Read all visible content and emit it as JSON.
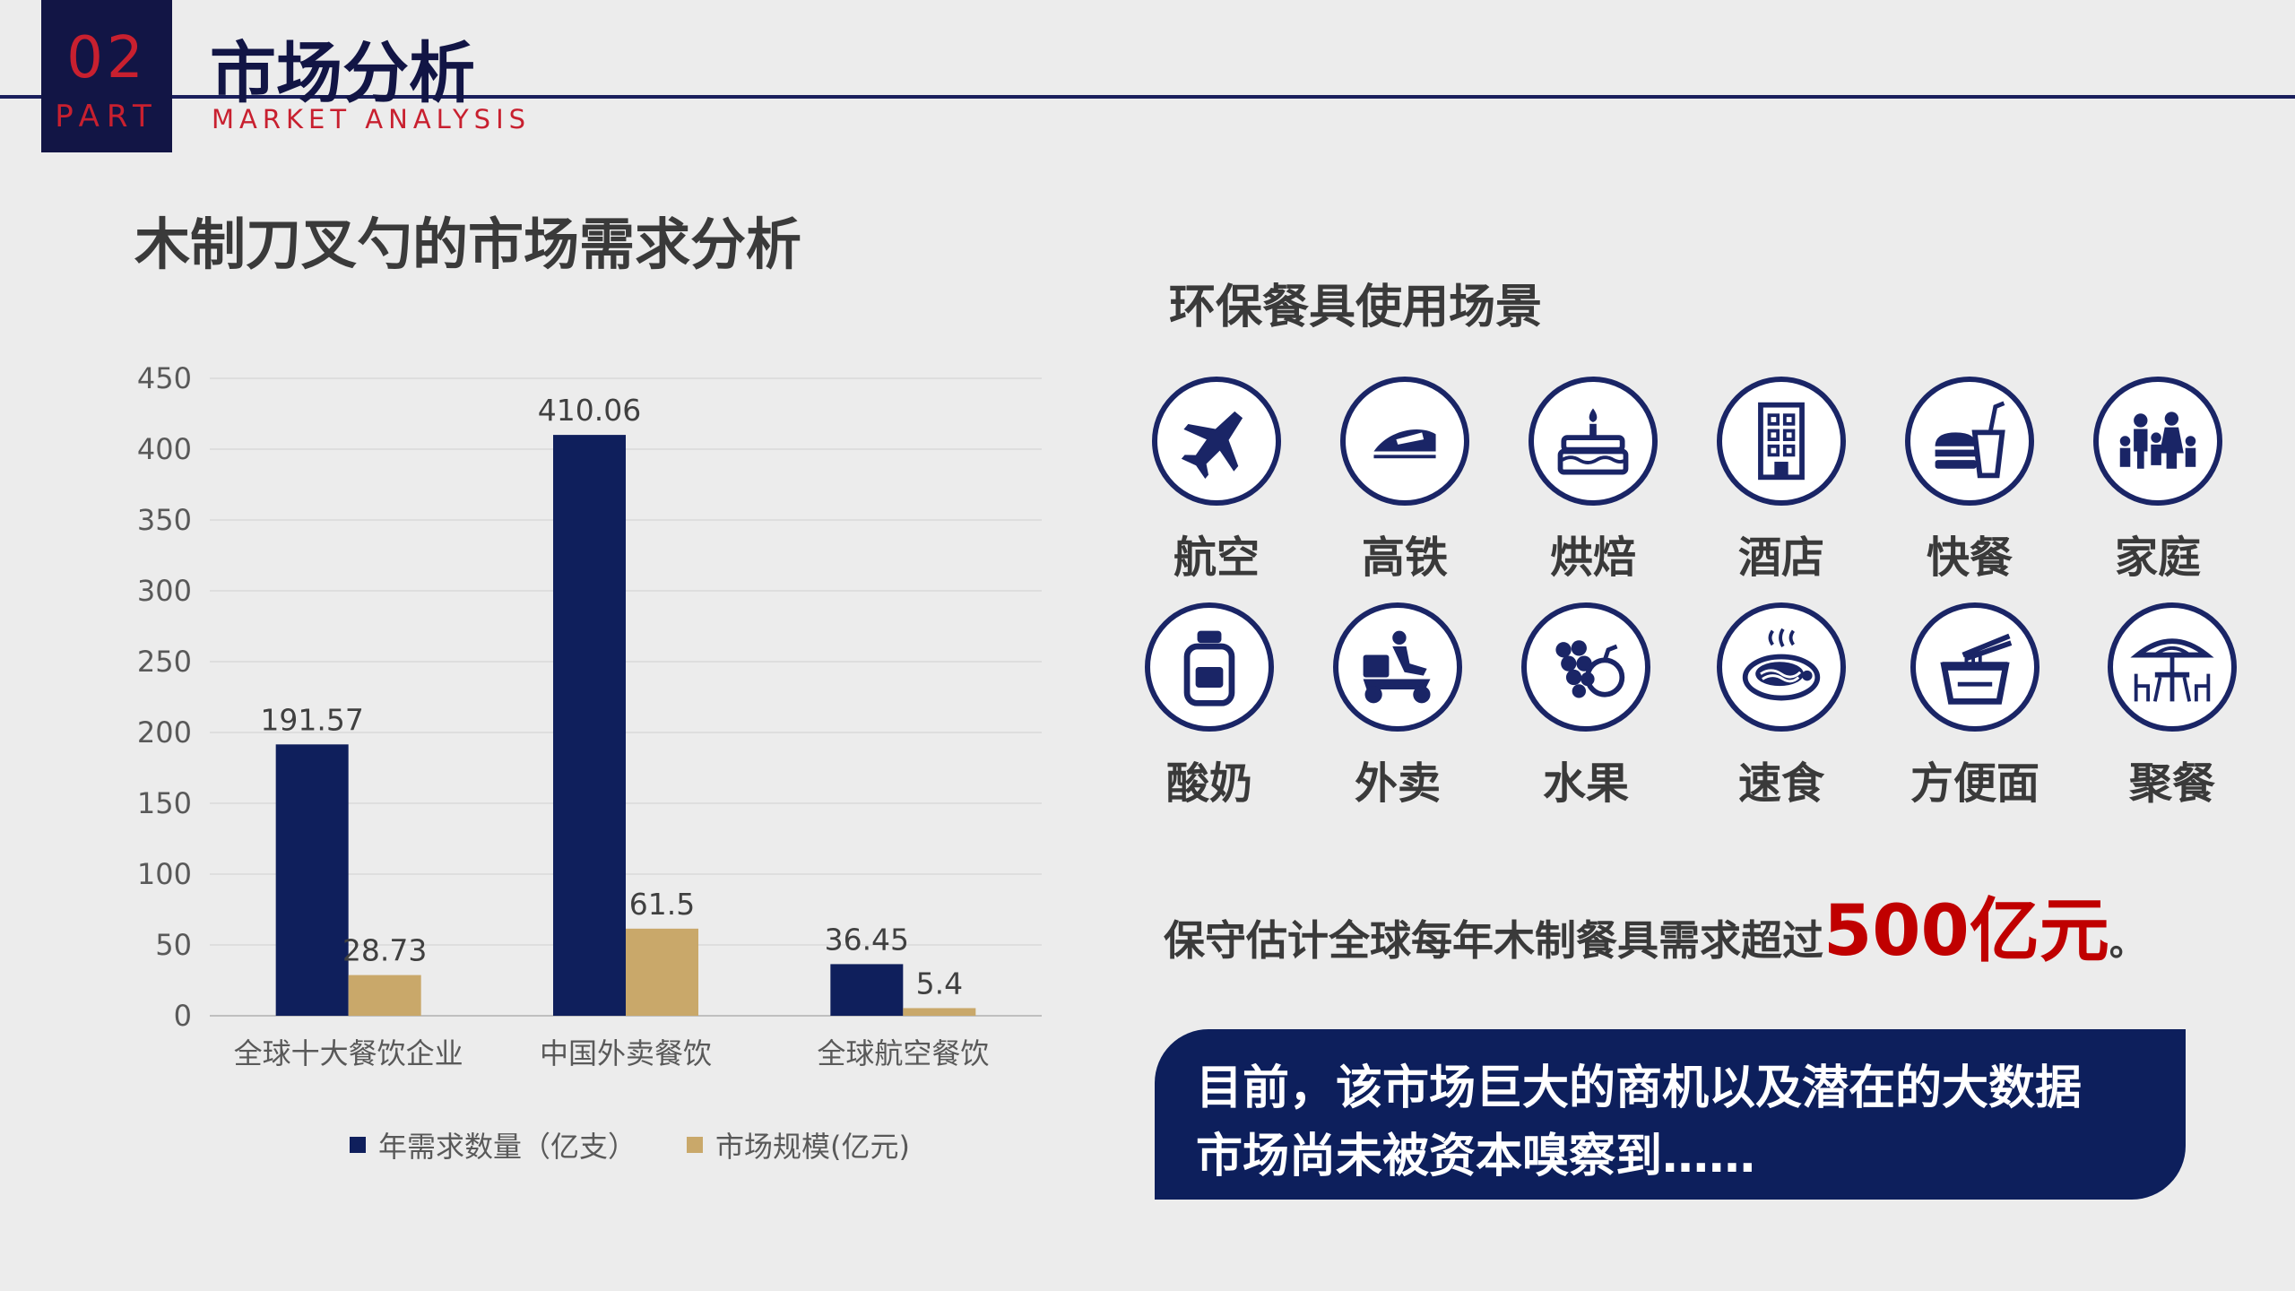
{
  "header": {
    "part_number": "02",
    "part_label": "PART",
    "title": "市场分析",
    "subtitle": "MARKET ANALYSIS"
  },
  "chart_data": {
    "type": "bar",
    "title": "木制刀叉勺的市场需求分析",
    "categories": [
      "全球十大餐饮企业",
      "中国外卖餐饮",
      "全球航空餐饮"
    ],
    "series": [
      {
        "name": "年需求数量（亿支）",
        "values": [
          191.57,
          410.06,
          36.45
        ],
        "color": "#0f1f5c"
      },
      {
        "name": "市场规模(亿元)",
        "values": [
          28.73,
          61.5,
          5.4
        ],
        "color": "#c9a86a"
      }
    ],
    "data_labels": [
      [
        "191.57",
        "410.06",
        "36.45"
      ],
      [
        "28.73",
        "61.5",
        "5.4"
      ]
    ],
    "ylim": [
      0,
      450
    ],
    "yticks": [
      "0",
      "50",
      "100",
      "150",
      "200",
      "250",
      "300",
      "350",
      "400",
      "450"
    ],
    "grid": true,
    "legend_position": "bottom"
  },
  "scenes": {
    "title": "环保餐具使用场景",
    "items": [
      {
        "label": "航空",
        "icon": "airplane-icon"
      },
      {
        "label": "高铁",
        "icon": "train-icon"
      },
      {
        "label": "烘焙",
        "icon": "cake-icon"
      },
      {
        "label": "酒店",
        "icon": "hotel-icon"
      },
      {
        "label": "快餐",
        "icon": "fast-food-icon"
      },
      {
        "label": "家庭",
        "icon": "family-icon"
      },
      {
        "label": "酸奶",
        "icon": "yogurt-icon"
      },
      {
        "label": "外卖",
        "icon": "delivery-scooter-icon"
      },
      {
        "label": "水果",
        "icon": "fruit-icon"
      },
      {
        "label": "速食",
        "icon": "noodle-plate-icon"
      },
      {
        "label": "方便面",
        "icon": "instant-noodle-icon"
      },
      {
        "label": "聚餐",
        "icon": "parasol-table-icon"
      }
    ]
  },
  "estimate": {
    "prefix": "保守估计全球每年木制餐具需求超过",
    "highlight": "500亿元",
    "suffix": "。"
  },
  "banner": {
    "line1": "目前，该市场巨大的商机以及潜在的大数据",
    "line2": "市场尚未被资本嗅察到……"
  },
  "colors": {
    "navy": "#0f1f5c",
    "gold": "#c9a86a",
    "accent_red": "#c8202f",
    "highlight_red": "#c00000"
  }
}
